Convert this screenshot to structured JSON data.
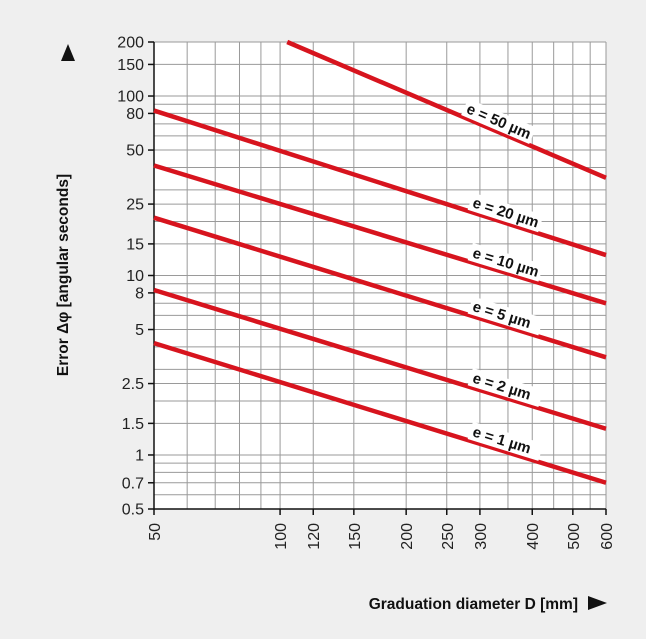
{
  "chart_data": {
    "type": "line",
    "xlabel": "Graduation diameter D [mm]",
    "ylabel": "Error Δφ [angular seconds]",
    "x_scale": "log",
    "y_scale": "log",
    "xlim": [
      50,
      600
    ],
    "ylim": [
      0.5,
      200
    ],
    "grid": true,
    "x_ticks": [
      50,
      100,
      120,
      150,
      200,
      250,
      300,
      400,
      500,
      600
    ],
    "y_ticks": [
      0.5,
      0.7,
      1,
      1.5,
      2.5,
      5,
      8,
      10,
      15,
      25,
      50,
      80,
      100,
      150,
      200
    ],
    "y_tick_labels": [
      "0.5",
      "0.7",
      "1",
      "1.5",
      "2.5",
      "5",
      "8",
      "10",
      "15",
      "25",
      "50",
      "80",
      "100",
      "150",
      "200"
    ],
    "x_grid": [
      50,
      60,
      70,
      80,
      90,
      100,
      120,
      150,
      200,
      250,
      300,
      350,
      400,
      450,
      500,
      550,
      600
    ],
    "y_grid": [
      0.5,
      0.6,
      0.7,
      0.8,
      0.9,
      1,
      1.5,
      2,
      2.5,
      3,
      4,
      5,
      6,
      7,
      8,
      9,
      10,
      15,
      20,
      25,
      30,
      40,
      50,
      60,
      70,
      80,
      90,
      100,
      150,
      200
    ],
    "series": [
      {
        "name": "e = 50 µm",
        "x": [
          104,
          600
        ],
        "y": [
          200,
          35
        ],
        "color": "#d7141e"
      },
      {
        "name": "e = 20 µm",
        "x": [
          50,
          600
        ],
        "y": [
          83,
          13
        ],
        "color": "#d7141e"
      },
      {
        "name": "e = 10 µm",
        "x": [
          50,
          600
        ],
        "y": [
          41,
          7
        ],
        "color": "#d7141e"
      },
      {
        "name": "e = 5 µm",
        "x": [
          50,
          600
        ],
        "y": [
          21,
          3.5
        ],
        "color": "#d7141e"
      },
      {
        "name": "e = 2 µm",
        "x": [
          50,
          600
        ],
        "y": [
          8.3,
          1.4
        ],
        "color": "#d7141e"
      },
      {
        "name": "e = 1 µm",
        "x": [
          50,
          600
        ],
        "y": [
          4.2,
          0.7
        ],
        "color": "#d7141e"
      }
    ],
    "labels": [
      {
        "series": 0,
        "x": 270
      },
      {
        "series": 1,
        "x": 280
      },
      {
        "series": 2,
        "x": 280
      },
      {
        "series": 3,
        "x": 280
      },
      {
        "series": 4,
        "x": 280
      },
      {
        "series": 5,
        "x": 280
      }
    ]
  }
}
